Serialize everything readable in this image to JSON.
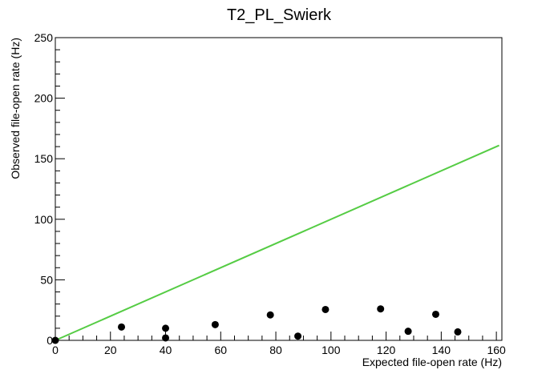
{
  "chart_data": {
    "type": "scatter",
    "title": "T2_PL_Swierk",
    "xlabel": "Expected file-open rate (Hz)",
    "ylabel": "Observed file-open rate (Hz)",
    "xlim": [
      0,
      162
    ],
    "ylim": [
      0,
      250
    ],
    "x_ticks": [
      0,
      20,
      40,
      60,
      80,
      100,
      120,
      140,
      160
    ],
    "y_ticks": [
      0,
      50,
      100,
      150,
      200,
      250
    ],
    "x_tick_labels": [
      "0",
      "20",
      "40",
      "60",
      "80",
      "100",
      "120",
      "140",
      "160"
    ],
    "y_tick_labels": [
      "0",
      "50",
      "100",
      "150",
      "200",
      "250"
    ],
    "grid": false,
    "legend": "none",
    "series": [
      {
        "type": "scatter",
        "color": "#000000",
        "points": [
          {
            "x": 0,
            "y": 0
          },
          {
            "x": 24,
            "y": 11
          },
          {
            "x": 40,
            "y": 10
          },
          {
            "x": 40,
            "y": 2
          },
          {
            "x": 58,
            "y": 13
          },
          {
            "x": 78,
            "y": 21
          },
          {
            "x": 88,
            "y": 3.5
          },
          {
            "x": 98,
            "y": 25.5
          },
          {
            "x": 118,
            "y": 26
          },
          {
            "x": 128,
            "y": 7.5
          },
          {
            "x": 138,
            "y": 21.5
          },
          {
            "x": 146,
            "y": 7
          }
        ]
      },
      {
        "type": "line",
        "color": "#55cc44",
        "points": [
          {
            "x": 0,
            "y": 0
          },
          {
            "x": 161,
            "y": 161
          }
        ]
      }
    ]
  }
}
